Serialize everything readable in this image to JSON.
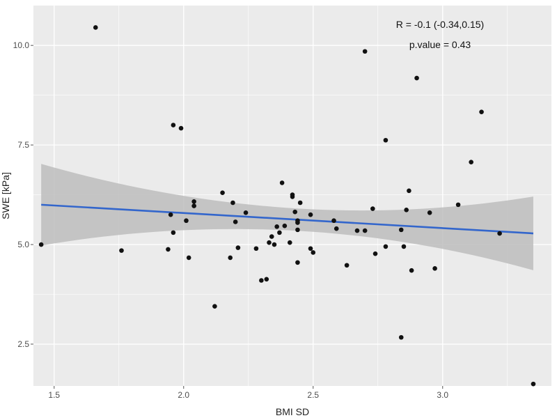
{
  "chart_data": {
    "type": "scatter",
    "title": "",
    "xlabel": "BMI SD",
    "ylabel": "SWE [kPa]",
    "xlim": [
      1.42,
      3.42
    ],
    "ylim": [
      1.45,
      11.0
    ],
    "xticks": [
      1.5,
      2.0,
      2.5,
      3.0
    ],
    "xtick_labels": [
      "1.5",
      "2.0",
      "2.5",
      "3.0"
    ],
    "yticks": [
      2.5,
      5.0,
      7.5,
      10.0
    ],
    "ytick_labels": [
      "2.5",
      "5.0",
      "7.5",
      "10.0"
    ],
    "grid": true,
    "annotations": [
      "R = -0.1 (-0.34,0.15)",
      "p.value = 0.43"
    ],
    "colors": {
      "panel": "#ebebeb",
      "grid": "#ffffff",
      "points": "#111111",
      "line": "#3366cc",
      "band": "#bdbdbd"
    },
    "regression": {
      "x": [
        1.45,
        3.35
      ],
      "y": [
        6.0,
        5.28
      ],
      "ci_lower": [
        4.95,
        4.35
      ],
      "ci_upper": [
        7.0,
        6.2
      ]
    },
    "points": [
      {
        "x": 1.45,
        "y": 5.0
      },
      {
        "x": 1.66,
        "y": 10.45
      },
      {
        "x": 1.76,
        "y": 4.85
      },
      {
        "x": 1.94,
        "y": 4.88
      },
      {
        "x": 1.95,
        "y": 5.75
      },
      {
        "x": 1.96,
        "y": 8.0
      },
      {
        "x": 1.96,
        "y": 5.3
      },
      {
        "x": 1.99,
        "y": 7.92
      },
      {
        "x": 2.01,
        "y": 5.6
      },
      {
        "x": 2.02,
        "y": 4.67
      },
      {
        "x": 2.04,
        "y": 6.08
      },
      {
        "x": 2.04,
        "y": 5.97
      },
      {
        "x": 2.12,
        "y": 3.45
      },
      {
        "x": 2.15,
        "y": 6.3
      },
      {
        "x": 2.18,
        "y": 4.67
      },
      {
        "x": 2.19,
        "y": 6.05
      },
      {
        "x": 2.2,
        "y": 5.57
      },
      {
        "x": 2.21,
        "y": 4.92
      },
      {
        "x": 2.24,
        "y": 5.8
      },
      {
        "x": 2.28,
        "y": 4.9
      },
      {
        "x": 2.3,
        "y": 4.1
      },
      {
        "x": 2.32,
        "y": 4.13
      },
      {
        "x": 2.33,
        "y": 5.05
      },
      {
        "x": 2.34,
        "y": 5.2
      },
      {
        "x": 2.35,
        "y": 5.0
      },
      {
        "x": 2.36,
        "y": 5.45
      },
      {
        "x": 2.37,
        "y": 5.3
      },
      {
        "x": 2.38,
        "y": 6.55
      },
      {
        "x": 2.39,
        "y": 5.47
      },
      {
        "x": 2.41,
        "y": 5.05
      },
      {
        "x": 2.42,
        "y": 6.2
      },
      {
        "x": 2.42,
        "y": 6.25
      },
      {
        "x": 2.43,
        "y": 5.82
      },
      {
        "x": 2.44,
        "y": 5.55
      },
      {
        "x": 2.44,
        "y": 5.6
      },
      {
        "x": 2.44,
        "y": 5.37
      },
      {
        "x": 2.44,
        "y": 4.55
      },
      {
        "x": 2.45,
        "y": 6.05
      },
      {
        "x": 2.49,
        "y": 5.75
      },
      {
        "x": 2.49,
        "y": 4.9
      },
      {
        "x": 2.5,
        "y": 4.8
      },
      {
        "x": 2.58,
        "y": 5.6
      },
      {
        "x": 2.59,
        "y": 5.4
      },
      {
        "x": 2.63,
        "y": 4.48
      },
      {
        "x": 2.67,
        "y": 5.35
      },
      {
        "x": 2.7,
        "y": 5.35
      },
      {
        "x": 2.7,
        "y": 9.85
      },
      {
        "x": 2.73,
        "y": 5.9
      },
      {
        "x": 2.74,
        "y": 4.77
      },
      {
        "x": 2.78,
        "y": 7.62
      },
      {
        "x": 2.78,
        "y": 4.95
      },
      {
        "x": 2.84,
        "y": 2.67
      },
      {
        "x": 2.84,
        "y": 5.37
      },
      {
        "x": 2.85,
        "y": 4.95
      },
      {
        "x": 2.86,
        "y": 5.87
      },
      {
        "x": 2.87,
        "y": 6.35
      },
      {
        "x": 2.88,
        "y": 4.35
      },
      {
        "x": 2.9,
        "y": 9.18
      },
      {
        "x": 2.95,
        "y": 5.8
      },
      {
        "x": 2.97,
        "y": 4.4
      },
      {
        "x": 3.06,
        "y": 6.0
      },
      {
        "x": 3.11,
        "y": 7.07
      },
      {
        "x": 3.15,
        "y": 8.33
      },
      {
        "x": 3.22,
        "y": 5.28
      },
      {
        "x": 3.35,
        "y": 1.5
      }
    ]
  }
}
